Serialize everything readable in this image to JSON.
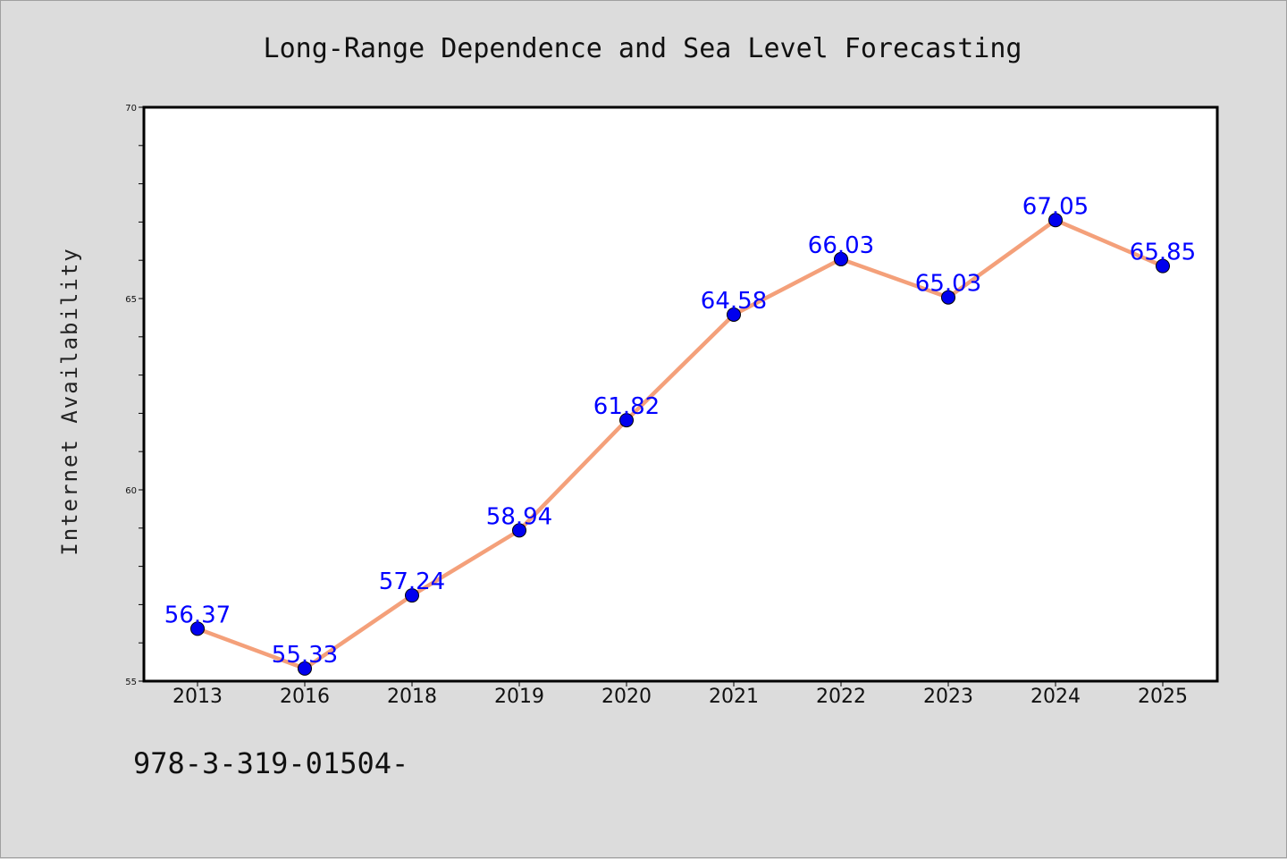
{
  "chart_data": {
    "type": "line",
    "title": "Long-Range Dependence and Sea Level Forecasting",
    "xlabel": "",
    "ylabel": "Internet Availability",
    "categories": [
      "2013",
      "2016",
      "2018",
      "2019",
      "2020",
      "2021",
      "2022",
      "2023",
      "2024",
      "2025"
    ],
    "series": [
      {
        "values": [
          56.37,
          55.33,
          57.24,
          58.94,
          61.82,
          64.58,
          66.03,
          65.03,
          67.05,
          65.85
        ],
        "line_color": "#f4a07a",
        "marker_color": "#0000ee"
      }
    ],
    "data_labels": [
      "56.37",
      "55.33",
      "57.24",
      "58.94",
      "61.82",
      "64.58",
      "66.03",
      "65.03",
      "67.05",
      "65.85"
    ],
    "data_label_color": "#0000ff",
    "ylim": [
      55,
      70
    ],
    "yticks": [
      "55",
      "60",
      "65",
      "70"
    ],
    "grid": false,
    "legend": "none",
    "footer_text": "978-3-319-01504-"
  }
}
